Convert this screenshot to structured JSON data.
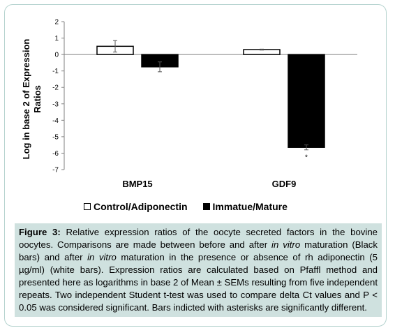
{
  "figure": {
    "caption_label": "Figure 3:",
    "caption_parts": [
      {
        "text": " Relative expression ratios of the oocyte secreted factors in the bovine oocytes. Comparisons are made between before and after ",
        "style": "normal"
      },
      {
        "text": "in vitro",
        "style": "italic"
      },
      {
        "text": " maturation (Black bars) and after ",
        "style": "normal"
      },
      {
        "text": "in vitro",
        "style": "italic"
      },
      {
        "text": " maturation in the presence or absence of rh adiponectin (5 µg/ml) (white bars). Expression ratios are calculated based on Pfaffl method and presented here as logarithms in base 2 of Mean ± SEMs resulting from five independent repeats. Two independent Student t-test was used to compare delta Ct values and P < 0.05 was considered significant. Bars indicted with asterisks are significantly different.",
        "style": "normal"
      }
    ]
  },
  "colors": {
    "frame_border": "#b5d3cf",
    "caption_bg": "#cfe1df",
    "control_fill": "#ffffff",
    "immature_fill": "#000000"
  },
  "chart_data": {
    "type": "bar",
    "categories": [
      "BMP15",
      "GDF9"
    ],
    "series": [
      {
        "name": "Control/Adiponectin",
        "values": [
          0.5,
          0.3
        ],
        "errors": [
          0.35,
          0.03
        ],
        "fill": "white"
      },
      {
        "name": "Immatue/Mature",
        "values": [
          -0.75,
          -5.65
        ],
        "errors": [
          0.3,
          0.15
        ],
        "fill": "black"
      }
    ],
    "annotations": [
      {
        "category": "GDF9",
        "series": "Immatue/Mature",
        "text": "*"
      }
    ],
    "ylabel_lines": [
      "Log in base 2 of Expression",
      "Ratios"
    ],
    "ylim": [
      -7,
      2
    ],
    "yticks": [
      2,
      1,
      0,
      -1,
      -2,
      -3,
      -4,
      -5,
      -6,
      -7
    ],
    "grid": false,
    "legend_position": "bottom"
  }
}
